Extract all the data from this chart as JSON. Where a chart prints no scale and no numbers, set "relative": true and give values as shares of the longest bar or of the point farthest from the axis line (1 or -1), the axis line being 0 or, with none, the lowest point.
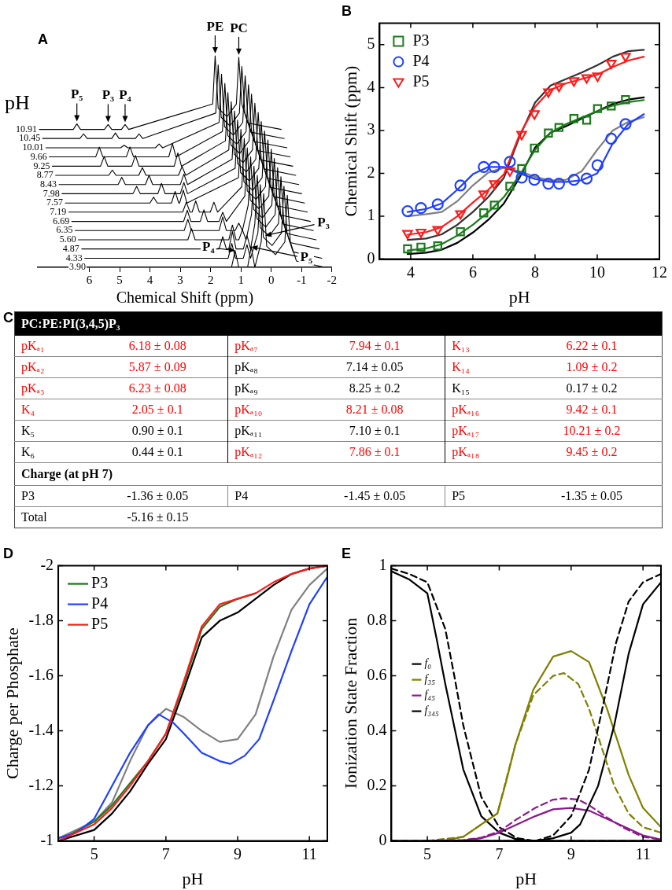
{
  "chart_data": [
    {
      "type": "line",
      "title": "A",
      "relative": true,
      "xlabel": "Chemical Shift (ppm)",
      "legend_title": "pH",
      "xlim": [
        7.7,
        -2
      ],
      "xticks": [
        6,
        5,
        4,
        3,
        2,
        1,
        0,
        -1,
        -2
      ],
      "annotations": [
        {
          "text": "P₅",
          "x": 6.41,
          "y": 0.678
        },
        {
          "text": "P₃",
          "x": 5.38,
          "y": 0.675
        },
        {
          "text": "P₄",
          "x": 4.82,
          "y": 0.675
        },
        {
          "text": "PE",
          "x": 1.85,
          "y": 1.0
        },
        {
          "text": "PC",
          "x": 1.07,
          "y": 0.993
        },
        {
          "text": "P₄",
          "x": 1.19,
          "y": 0.079
        },
        {
          "text": "P₅",
          "x": 0.66,
          "y": 0.097
        },
        {
          "text": "P₃",
          "x": 0.2,
          "y": 0.15
        }
      ],
      "series": [
        {
          "name": "10.91",
          "color": "#000000",
          "x": [
            7.65,
            6.53,
            6.41,
            6.29,
            5.5,
            5.38,
            5.26,
            4.94,
            4.82,
            4.7,
            1.93,
            1.85,
            1.75,
            1.46,
            1.15,
            1.07,
            0.97,
            0.77,
            -0.33
          ],
          "values": [
            0.652,
            0.652,
            0.678,
            0.652,
            0.652,
            0.675,
            0.652,
            0.652,
            0.675,
            0.652,
            0.772,
            1.0,
            0.752,
            0.712,
            0.772,
            0.993,
            0.772,
            0.682,
            0.652
          ]
        },
        {
          "name": "10.45",
          "color": "#000000",
          "x": [
            7.54,
            6.31,
            6.19,
            6.07,
            5.26,
            5.14,
            5.02,
            4.48,
            4.36,
            4.24,
            1.83,
            1.75,
            1.65,
            1.36,
            1.05,
            0.97,
            0.87,
            0.67,
            -0.43
          ],
          "values": [
            0.609,
            0.609,
            0.631,
            0.609,
            0.609,
            0.635,
            0.609,
            0.609,
            0.631,
            0.609,
            0.729,
            0.957,
            0.709,
            0.669,
            0.729,
            0.95,
            0.729,
            0.639,
            0.609
          ]
        },
        {
          "name": "10.01",
          "color": "#000000",
          "x": [
            7.43,
            4.97,
            4.85,
            4.73,
            3.82,
            3.7,
            3.58,
            1.72,
            1.64,
            1.54,
            1.25,
            0.94,
            0.86,
            0.76,
            0.56,
            -0.52
          ],
          "values": [
            0.565,
            0.565,
            0.577,
            0.565,
            0.565,
            0.583,
            0.565,
            0.685,
            0.913,
            0.665,
            0.625,
            0.685,
            0.906,
            0.685,
            0.595,
            0.565
          ]
        },
        {
          "name": "9.66",
          "color": "#000000",
          "x": [
            7.32,
            5.79,
            5.67,
            5.55,
            4.78,
            4.66,
            4.54,
            3.38,
            3.26,
            3.14,
            1.61,
            1.53,
            1.43,
            1.14,
            0.83,
            0.75,
            0.65,
            0.45,
            -0.62
          ],
          "values": [
            0.522,
            0.522,
            0.568,
            0.522,
            0.522,
            0.569,
            0.522,
            0.522,
            0.585,
            0.522,
            0.642,
            0.87,
            0.622,
            0.582,
            0.642,
            0.863,
            0.642,
            0.552,
            0.522
          ]
        },
        {
          "name": "9.25",
          "color": "#000000",
          "x": [
            7.22,
            5.63,
            5.51,
            5.39,
            4.6,
            4.48,
            4.36,
            3.2,
            3.08,
            2.96,
            1.51,
            1.43,
            1.33,
            1.04,
            0.73,
            0.65,
            0.55,
            0.35,
            -0.71
          ],
          "values": [
            0.478,
            0.478,
            0.524,
            0.478,
            0.478,
            0.529,
            0.478,
            0.478,
            0.541,
            0.478,
            0.598,
            0.826,
            0.578,
            0.538,
            0.598,
            0.819,
            0.598,
            0.508,
            0.478
          ]
        },
        {
          "name": "8.77",
          "color": "#000000",
          "x": [
            7.11,
            5.36,
            5.24,
            5.12,
            4.37,
            4.25,
            4.13,
            3.06,
            2.94,
            2.82,
            1.4,
            1.32,
            1.22,
            0.93,
            0.62,
            0.54,
            0.44,
            0.24,
            -0.81
          ],
          "values": [
            0.435,
            0.435,
            0.46,
            0.435,
            0.435,
            0.471,
            0.435,
            0.435,
            0.477,
            0.435,
            0.555,
            0.783,
            0.535,
            0.495,
            0.555,
            0.776,
            0.555,
            0.465,
            0.435
          ]
        },
        {
          "name": "8.43",
          "color": "#000000",
          "x": [
            7.0,
            5.05,
            4.93,
            4.81,
            4.15,
            4.03,
            3.91,
            3.0,
            2.88,
            2.76,
            1.29,
            1.21,
            1.11,
            0.82,
            0.51,
            0.43,
            0.33,
            0.13,
            -0.91
          ],
          "values": [
            0.391,
            0.391,
            0.426,
            0.391,
            0.391,
            0.435,
            0.391,
            0.391,
            0.441,
            0.391,
            0.511,
            0.739,
            0.491,
            0.451,
            0.511,
            0.732,
            0.511,
            0.421,
            0.391
          ]
        },
        {
          "name": "7.98",
          "color": "#000000",
          "x": [
            6.9,
            4.56,
            4.44,
            4.32,
            3.74,
            3.62,
            3.5,
            3.0,
            2.88,
            2.76,
            1.19,
            1.11,
            1.01,
            0.72,
            0.41,
            0.33,
            0.23,
            0.03,
            -1.0
          ],
          "values": [
            0.348,
            0.348,
            0.383,
            0.348,
            0.348,
            0.397,
            0.348,
            0.348,
            0.401,
            0.348,
            0.468,
            0.696,
            0.448,
            0.408,
            0.468,
            0.689,
            0.468,
            0.378,
            0.348
          ]
        },
        {
          "name": "7.57",
          "color": "#000000",
          "x": [
            6.79,
            4.0,
            3.88,
            3.76,
            3.29,
            3.17,
            3.05,
            3.02,
            2.9,
            2.78,
            1.08,
            1.0,
            0.9,
            0.61,
            0.3,
            0.22,
            0.12,
            -0.08,
            -1.1
          ],
          "values": [
            0.304,
            0.304,
            0.332,
            0.304,
            0.304,
            0.359,
            0.304,
            0.304,
            0.365,
            0.304,
            0.424,
            0.652,
            0.404,
            0.364,
            0.424,
            0.645,
            0.424,
            0.334,
            0.304
          ]
        },
        {
          "name": "7.19",
          "color": "#000000",
          "x": [
            6.68,
            2.92,
            2.8,
            2.68,
            2.61,
            2.49,
            2.37,
            2.01,
            1.89,
            1.77,
            0.97,
            0.89,
            0.79,
            0.5,
            0.19,
            0.11,
            0.01,
            -0.19,
            -1.19
          ],
          "values": [
            0.261,
            0.261,
            0.308,
            0.261,
            0.261,
            0.314,
            0.261,
            0.261,
            0.308,
            0.261,
            0.381,
            0.609,
            0.361,
            0.321,
            0.381,
            0.602,
            0.381,
            0.291,
            0.261
          ]
        },
        {
          "name": "6.69",
          "color": "#000000",
          "x": [
            6.58,
            2.89,
            2.77,
            2.65,
            2.34,
            2.22,
            2.1,
            1.72,
            1.6,
            1.48,
            0.87,
            0.79,
            0.69,
            0.4,
            0.08,
            0.0,
            -0.1,
            -0.3,
            -1.29
          ],
          "values": [
            0.217,
            0.217,
            0.27,
            0.217,
            0.217,
            0.272,
            0.217,
            0.217,
            0.26,
            0.217,
            0.337,
            0.565,
            0.317,
            0.277,
            0.337,
            0.558,
            0.337,
            0.247,
            0.217
          ]
        },
        {
          "name": "6.35",
          "color": "#000000",
          "x": [
            6.47,
            2.87,
            2.75,
            2.63,
            1.72,
            1.6,
            1.48,
            1.19,
            1.07,
            0.95,
            0.76,
            0.68,
            0.58,
            0.29,
            -0.02,
            -0.1,
            -0.2,
            -0.4,
            -1.39
          ],
          "values": [
            0.174,
            0.174,
            0.227,
            0.174,
            0.174,
            0.238,
            0.174,
            0.174,
            0.209,
            0.174,
            0.294,
            0.522,
            0.274,
            0.234,
            0.294,
            0.515,
            0.294,
            0.204,
            0.174
          ]
        },
        {
          "name": "5.60",
          "color": "#000000",
          "x": [
            6.36,
            2.75,
            2.63,
            2.51,
            1.4,
            1.28,
            1.16,
            1.07,
            0.95,
            0.83,
            0.65,
            0.57,
            0.47,
            0.18,
            -0.13,
            -0.21,
            -0.31,
            -0.51,
            -1.48
          ],
          "values": [
            0.13,
            0.13,
            0.183,
            0.13,
            0.13,
            0.2,
            0.13,
            0.13,
            0.177,
            0.13,
            0.25,
            0.478,
            0.23,
            0.19,
            0.25,
            0.471,
            0.25,
            0.16,
            0.13
          ]
        },
        {
          "name": "4.87",
          "color": "#000000",
          "x": [
            6.25,
            1.72,
            1.6,
            1.48,
            1.4,
            1.28,
            1.16,
            0.92,
            0.8,
            0.68,
            0.54,
            0.46,
            0.36,
            0.07,
            -0.24,
            -0.32,
            -0.42,
            -0.62,
            -1.58
          ],
          "values": [
            0.087,
            0.087,
            0.145,
            0.087,
            0.087,
            0.169,
            0.087,
            0.087,
            0.151,
            0.087,
            0.207,
            0.435,
            0.187,
            0.147,
            0.207,
            0.428,
            0.207,
            0.117,
            0.087
          ]
        },
        {
          "name": "4.33",
          "color": "#000000",
          "x": [
            6.15,
            1.42,
            1.3,
            1.18,
            0.92,
            0.8,
            0.68,
            0.44,
            0.36,
            0.26,
            -0.03,
            -0.34,
            -0.42,
            -0.52,
            -0.72,
            -1.67
          ],
          "values": [
            0.043,
            0.043,
            0.113,
            0.043,
            0.043,
            0.107,
            0.043,
            0.163,
            0.391,
            0.143,
            0.103,
            0.163,
            0.384,
            0.163,
            0.073,
            0.043
          ]
        },
        {
          "name": "3.90",
          "color": "#000000",
          "x": [
            6.04,
            1.31,
            1.19,
            1.07,
            0.78,
            0.66,
            0.54,
            0.33,
            0.25,
            0.15,
            -0.14,
            -0.45,
            -0.53,
            -0.63,
            -0.83,
            -1.77
          ],
          "values": [
            0,
            0,
            0.079,
            0,
            0,
            0.097,
            0,
            0.12,
            0.348,
            0.1,
            0.06,
            0.12,
            0.341,
            0.12,
            0.03,
            0
          ]
        }
      ]
    },
    {
      "type": "line",
      "title": "B",
      "xlabel": "pH",
      "ylabel": "Chemical Shift (ppm)",
      "xlim": [
        3,
        12
      ],
      "xticks": [
        4,
        6,
        8,
        10,
        12
      ],
      "ylim": [
        0,
        5.5
      ],
      "yticks": [
        0,
        1,
        2,
        3,
        4,
        5
      ],
      "legend": "top left",
      "x": [
        3.9,
        4.33,
        4.87,
        5.6,
        6.35,
        6.69,
        7.19,
        7.57,
        7.98,
        8.43,
        8.77,
        9.25,
        9.66,
        10.01,
        10.45,
        10.91
      ],
      "series": [
        {
          "color": "#000000",
          "x": [
            3.9,
            4.5,
            5,
            5.5,
            6,
            6.5,
            7,
            7.5,
            8,
            8.5,
            9,
            9.5,
            10,
            10.5,
            11,
            11.5
          ],
          "values": [
            0.12,
            0.15,
            0.22,
            0.38,
            0.62,
            0.92,
            1.3,
            1.9,
            2.6,
            2.95,
            3.1,
            3.28,
            3.45,
            3.62,
            3.72,
            3.77
          ]
        },
        {
          "color": "#1a7a1a",
          "x": [
            3.9,
            4.5,
            5,
            5.5,
            6,
            6.5,
            7,
            7.5,
            8,
            8.5,
            9,
            9.5,
            10,
            10.5,
            11,
            11.5
          ],
          "values": [
            0.2,
            0.25,
            0.35,
            0.55,
            0.8,
            1.1,
            1.45,
            1.95,
            2.55,
            2.95,
            3.15,
            3.3,
            3.45,
            3.58,
            3.66,
            3.71
          ]
        },
        {
          "color": "#808080",
          "x": [
            3.9,
            4.5,
            5,
            5.5,
            6,
            6.5,
            7,
            7.5,
            8,
            8.5,
            9,
            9.5,
            10,
            10.5,
            11,
            11.5
          ],
          "values": [
            1.0,
            1.05,
            1.1,
            1.35,
            1.72,
            2.02,
            2.13,
            2.05,
            1.92,
            1.83,
            1.85,
            2.05,
            2.55,
            3.0,
            3.2,
            3.31
          ]
        },
        {
          "color": "#1f3fff",
          "x": [
            3.9,
            4.5,
            5,
            5.5,
            6,
            6.5,
            7,
            7.5,
            8,
            8.5,
            9,
            9.5,
            10,
            10.5,
            11,
            11.5
          ],
          "values": [
            1.1,
            1.17,
            1.3,
            1.62,
            1.98,
            2.15,
            2.15,
            2.0,
            1.87,
            1.8,
            1.8,
            1.84,
            2.0,
            2.7,
            3.15,
            3.38
          ]
        },
        {
          "color": "#333333",
          "x": [
            3.9,
            4.5,
            5,
            5.5,
            6,
            6.5,
            7,
            7.5,
            8,
            8.5,
            9,
            9.5,
            10,
            10.5,
            11,
            11.5
          ],
          "values": [
            0.45,
            0.48,
            0.58,
            0.8,
            1.1,
            1.45,
            1.9,
            2.85,
            3.65,
            4.05,
            4.2,
            4.35,
            4.52,
            4.72,
            4.85,
            4.88
          ]
        },
        {
          "color": "#ff1a1a",
          "x": [
            3.9,
            4.5,
            5,
            5.5,
            6,
            6.5,
            7,
            7.5,
            8,
            8.5,
            9,
            9.5,
            10,
            10.5,
            11,
            11.5
          ],
          "values": [
            0.57,
            0.63,
            0.75,
            1.0,
            1.32,
            1.62,
            1.98,
            2.9,
            3.55,
            3.95,
            4.1,
            4.2,
            4.3,
            4.48,
            4.63,
            4.72
          ]
        },
        {
          "type": "scatter",
          "name": "P3",
          "color": "#1a7a1a",
          "marker": "square",
          "values": [
            0.24,
            0.28,
            0.31,
            0.64,
            1.08,
            1.26,
            1.7,
            2.11,
            2.59,
            2.94,
            3.07,
            3.28,
            3.24,
            3.51,
            3.57,
            3.72
          ]
        },
        {
          "type": "scatter",
          "name": "P4",
          "color": "#1f3fff",
          "marker": "circle",
          "values": [
            1.12,
            1.19,
            1.28,
            1.72,
            2.15,
            2.15,
            2.27,
            1.9,
            1.85,
            1.76,
            1.76,
            1.85,
            1.88,
            2.19,
            2.81,
            3.15
          ]
        },
        {
          "type": "scatter",
          "name": "P5",
          "color": "#ff1a1a",
          "marker": "triangle",
          "values": [
            0.6,
            0.63,
            0.69,
            1.06,
            1.52,
            1.76,
            2.06,
            2.91,
            3.39,
            3.9,
            4.03,
            4.16,
            4.23,
            4.27,
            4.57,
            4.73
          ]
        }
      ]
    },
    {
      "type": "other",
      "title": "C",
      "subtitle": "PC:PE:PI(3,4,5)P₃",
      "annotations": [
        "pKₐ₁",
        "6.18 ± 0.08",
        "pKₐ₇",
        "7.94 ± 0.1",
        "K₁₃",
        "6.22 ± 0.1",
        "pKₐ₂",
        "5.87 ± 0.09",
        "pKₐ₈",
        "7.14 ± 0.05",
        "K₁₄",
        "1.09 ± 0.2",
        "pKₐ₃",
        "6.23 ± 0.08",
        "pKₐ₉",
        "8.25 ± 0.2",
        "K₁₅",
        "0.17 ± 0.2",
        "K₄",
        "2.05 ± 0.1",
        "pKₐ₁₀",
        "8.21 ± 0.08",
        "pKₐ₁₆",
        "9.42 ± 0.1",
        "K₅",
        "0.90 ± 0.1",
        "pKₐ₁₁",
        "7.10 ± 0.1",
        "pKₐ₁₇",
        "10.21 ± 0.2",
        "K₆",
        "0.44 ± 0.1",
        "pKₐ₁₂",
        "7.86 ± 0.1",
        "pKₐ₁₈",
        "9.45 ± 0.2",
        "Charge (at pH 7)",
        "P3",
        "-1.36 ± 0.05",
        "P4",
        "-1.45 ± 0.05",
        "P5",
        "-1.35 ± 0.05",
        "Total",
        "-5.16 ± 0.15"
      ],
      "colors": [
        "#ff0000",
        "#ff0000",
        "#ff0000",
        "#ff0000",
        "#ff0000",
        "#ff0000",
        "#ff0000",
        "#ff0000",
        "#000000",
        "#000000",
        "#ff0000",
        "#ff0000",
        "#ff0000",
        "#ff0000",
        "#000000",
        "#000000",
        "#000000",
        "#000000",
        "#ff0000",
        "#ff0000",
        "#ff0000",
        "#ff0000",
        "#ff0000",
        "#ff0000",
        "#000000",
        "#000000",
        "#000000",
        "#000000",
        "#ff0000",
        "#ff0000",
        "#000000",
        "#000000",
        "#ff0000",
        "#ff0000",
        "#ff0000",
        "#ff0000",
        "#000000",
        "#000000",
        "#000000",
        "#000000",
        "#000000",
        "#000000",
        "#000000",
        "#000000",
        "#000000"
      ]
    },
    {
      "type": "line",
      "title": "D",
      "xlabel": "pH",
      "ylabel": "Charge per Phosphate",
      "xlim": [
        4,
        11.5
      ],
      "xticks": [
        5,
        7,
        9,
        11
      ],
      "ylim": [
        -1,
        -2
      ],
      "yticks": [
        -1,
        -1.2,
        -1.4,
        -1.6,
        -1.8,
        -2
      ],
      "legend": "top left",
      "series": [
        {
          "color": "#808080",
          "x": [
            4,
            5,
            5.5,
            6,
            6.5,
            7,
            7.5,
            8,
            8.5,
            9,
            9.5,
            10,
            10.5,
            11,
            11.5
          ],
          "values": [
            -1.01,
            -1.07,
            -1.14,
            -1.29,
            -1.42,
            -1.48,
            -1.45,
            -1.4,
            -1.36,
            -1.37,
            -1.46,
            -1.67,
            -1.84,
            -1.93,
            -1.99
          ]
        },
        {
          "color": "#000000",
          "x": [
            4,
            5,
            5.5,
            6,
            6.5,
            7,
            7.5,
            8,
            8.5,
            9,
            9.5,
            10,
            10.5,
            11,
            11.5
          ],
          "values": [
            -1.0,
            -1.04,
            -1.1,
            -1.18,
            -1.28,
            -1.37,
            -1.55,
            -1.74,
            -1.8,
            -1.83,
            -1.88,
            -1.93,
            -1.97,
            -1.99,
            -2.0
          ]
        },
        {
          "name": "P3",
          "color": "#1a7a1a",
          "x": [
            4,
            5,
            5.5,
            6,
            6.5,
            7,
            7.5,
            8,
            8.5,
            9,
            9.5
          ],
          "values": [
            -1.0,
            -1.07,
            -1.13,
            -1.21,
            -1.29,
            -1.39,
            -1.57,
            -1.77,
            -1.85,
            -1.88,
            -1.9
          ]
        },
        {
          "name": "P4",
          "color": "#1f3fff",
          "x": [
            4,
            4.5,
            5,
            5.5,
            6,
            6.5,
            6.8,
            7.2,
            7.5,
            8,
            8.5,
            8.8,
            9.2,
            9.6,
            10,
            10.5,
            11,
            11.5
          ],
          "values": [
            -1.01,
            -1.03,
            -1.08,
            -1.2,
            -1.32,
            -1.42,
            -1.46,
            -1.43,
            -1.39,
            -1.32,
            -1.29,
            -1.28,
            -1.31,
            -1.37,
            -1.51,
            -1.69,
            -1.86,
            -1.96
          ]
        },
        {
          "name": "P5",
          "color": "#ff1a1a",
          "x": [
            4,
            5,
            5.5,
            6,
            6.5,
            7,
            7.5,
            8,
            8.5,
            9,
            9.5,
            10,
            10.5,
            11,
            11.5
          ],
          "values": [
            -1.0,
            -1.06,
            -1.12,
            -1.2,
            -1.29,
            -1.39,
            -1.58,
            -1.78,
            -1.86,
            -1.88,
            -1.9,
            -1.94,
            -1.97,
            -1.99,
            -2.0
          ]
        }
      ]
    },
    {
      "type": "line",
      "title": "E",
      "xlabel": "pH",
      "ylabel": "Ionization State Fraction",
      "xlim": [
        4,
        11.5
      ],
      "xticks": [
        5,
        7,
        9,
        11
      ],
      "ylim": [
        0,
        1
      ],
      "yticks": [
        0,
        0.2,
        0.4,
        0.6,
        0.8,
        1
      ],
      "legend": "left",
      "series": [
        {
          "name": "f₀",
          "color": "#000000",
          "x": [
            4,
            4.5,
            5,
            5.25,
            5.5,
            6,
            6.5,
            7,
            7.5,
            8,
            9,
            10,
            11.5
          ],
          "values": [
            0.98,
            0.95,
            0.9,
            0.74,
            0.57,
            0.26,
            0.09,
            0.03,
            0.005,
            0,
            0,
            0,
            0
          ]
        },
        {
          "name": "f₃₅",
          "color": "#808000",
          "x": [
            5,
            5.5,
            6,
            6.5,
            6.95,
            7.2,
            7.45,
            7.95,
            8.5,
            9,
            9.5,
            10,
            10.3,
            10.6,
            11,
            11.5
          ],
          "values": [
            0,
            0.002,
            0.015,
            0.06,
            0.1,
            0.22,
            0.35,
            0.55,
            0.67,
            0.69,
            0.65,
            0.48,
            0.36,
            0.24,
            0.12,
            0.05
          ]
        },
        {
          "name": "f₄₅",
          "color": "#8b1a8b",
          "x": [
            5,
            6,
            6.5,
            7,
            7.5,
            8,
            8.5,
            9,
            9.5,
            10,
            10.5,
            11,
            11.5
          ],
          "values": [
            0,
            0.002,
            0.01,
            0.03,
            0.06,
            0.09,
            0.115,
            0.12,
            0.11,
            0.08,
            0.05,
            0.02,
            0.005
          ]
        },
        {
          "name": "f₃₄₅",
          "color": "#000000",
          "x": [
            4,
            6,
            8,
            8.5,
            9,
            9.25,
            9.75,
            10.2,
            10.6,
            11,
            11.5
          ],
          "values": [
            0,
            0,
            0,
            0.01,
            0.03,
            0.06,
            0.2,
            0.42,
            0.68,
            0.86,
            0.94
          ]
        },
        {
          "color": "#000000",
          "line_style": "dashed",
          "x": [
            4,
            4.5,
            5,
            5.5,
            5.75,
            6,
            6.5,
            7,
            7.5,
            8,
            9,
            10,
            11.5
          ],
          "values": [
            0.99,
            0.97,
            0.94,
            0.77,
            0.6,
            0.42,
            0.16,
            0.05,
            0.01,
            0,
            0,
            0,
            0
          ]
        },
        {
          "color": "#808000",
          "line_style": "dashed",
          "x": [
            5,
            6,
            6.5,
            6.95,
            7.45,
            7.95,
            8.5,
            8.8,
            9.2,
            9.5,
            9.8,
            10.2,
            10.6,
            11,
            11.5
          ],
          "values": [
            0,
            0.015,
            0.06,
            0.1,
            0.35,
            0.53,
            0.6,
            0.61,
            0.57,
            0.48,
            0.36,
            0.2,
            0.1,
            0.05,
            0.03
          ]
        },
        {
          "color": "#8b1a8b",
          "line_style": "dashed",
          "x": [
            5,
            6,
            6.5,
            7,
            7.5,
            8,
            8.5,
            8.8,
            9.2,
            9.5,
            10,
            10.5,
            11,
            11.5
          ],
          "values": [
            0,
            0.003,
            0.012,
            0.035,
            0.08,
            0.12,
            0.15,
            0.155,
            0.15,
            0.13,
            0.085,
            0.045,
            0.015,
            0.005
          ]
        },
        {
          "color": "#000000",
          "line_style": "dashed",
          "x": [
            4,
            6,
            8,
            8.5,
            9,
            9.5,
            9.9,
            10.25,
            10.6,
            11,
            11.5
          ],
          "values": [
            0,
            0,
            0,
            0.02,
            0.09,
            0.26,
            0.5,
            0.72,
            0.87,
            0.94,
            0.97
          ]
        }
      ]
    }
  ]
}
